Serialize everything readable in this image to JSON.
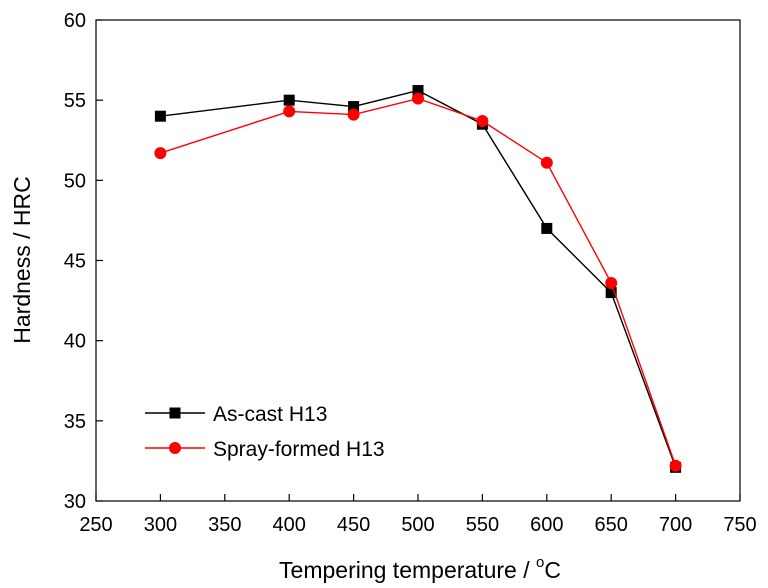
{
  "chart_data": {
    "type": "line",
    "title": "",
    "xlabel": "Tempering temperature / ",
    "xlabel_unit_sup": "o",
    "xlabel_unit": "C",
    "ylabel": "Hardness / HRC",
    "xlim": [
      250,
      750
    ],
    "ylim": [
      30,
      60
    ],
    "xticks": [
      250,
      300,
      350,
      400,
      450,
      500,
      550,
      600,
      650,
      700,
      750
    ],
    "yticks": [
      30,
      35,
      40,
      45,
      50,
      55,
      60
    ],
    "grid": false,
    "legend_position": "bottom-left",
    "series": [
      {
        "name": "As-cast H13",
        "color": "#000000",
        "marker": "square",
        "x": [
          300,
          400,
          450,
          500,
          550,
          600,
          650,
          700
        ],
        "y": [
          54.0,
          55.0,
          54.6,
          55.6,
          53.5,
          47.0,
          43.0,
          32.1
        ]
      },
      {
        "name": "Spray-formed H13",
        "color": "#ff0000",
        "marker": "circle",
        "x": [
          300,
          400,
          450,
          500,
          550,
          600,
          650,
          700
        ],
        "y": [
          51.7,
          54.3,
          54.1,
          55.1,
          53.7,
          51.1,
          43.6,
          32.2
        ]
      }
    ]
  }
}
